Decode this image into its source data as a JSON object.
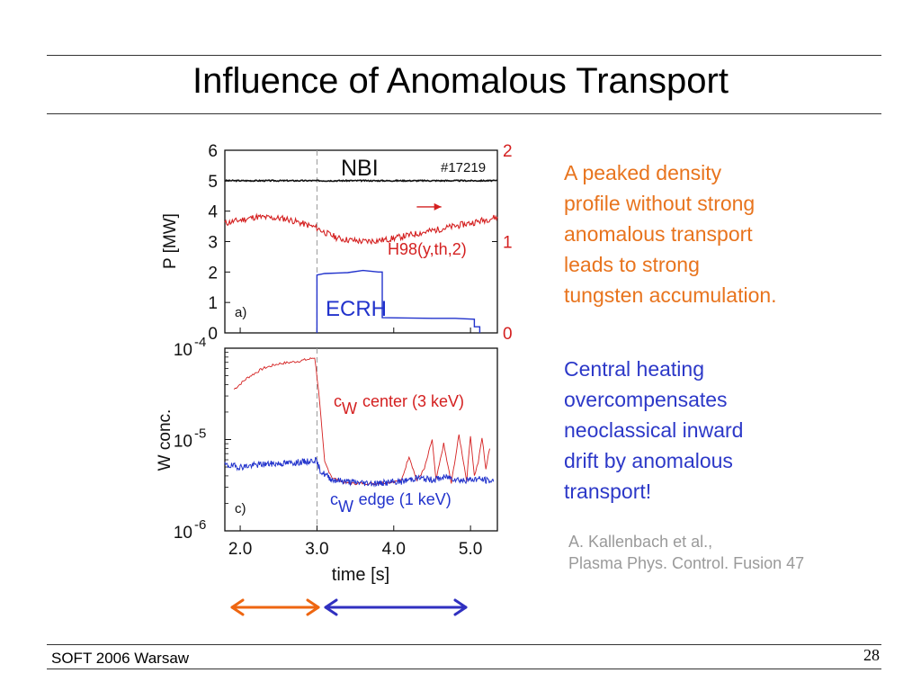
{
  "slide": {
    "title": "Influence of Anomalous Transport",
    "footer": "SOFT 2006 Warsaw",
    "page_number": "28",
    "text_orange": [
      "A peaked density",
      "profile without strong",
      "anomalous transport",
      "leads to strong",
      "tungsten accumulation."
    ],
    "text_blue": [
      "Central heating",
      "overcompensates",
      "neoclassical inward",
      "drift by anomalous",
      "transport!"
    ],
    "citation": [
      "A. Kallenbach et al.,",
      "Plasma Phys. Control. Fusion 47"
    ]
  },
  "colors": {
    "black": "#111111",
    "red": "#d42020",
    "blue": "#2233cc",
    "orange": "#ee6611",
    "arrow_blue": "#3030c0",
    "text_orange": "#e8741e",
    "text_blue": "#2c38c8",
    "grey": "#9a9a9a"
  },
  "chart_data": [
    {
      "type": "line",
      "panel_label": "a)",
      "shot_label": "#17219",
      "ylabel": "P  [MW]",
      "xlim": [
        1.8,
        5.35
      ],
      "ylim": [
        0,
        6
      ],
      "y_ticks": [
        "0",
        "1",
        "2",
        "3",
        "4",
        "5",
        "6"
      ],
      "y2_ticks": [
        "0",
        "1",
        "2"
      ],
      "y2lim": [
        0,
        2
      ],
      "vline_x": 3.0,
      "annotations": [
        "NBI",
        "H98(y,th,2)",
        "ECRH"
      ],
      "series": [
        {
          "name": "NBI",
          "color": "black",
          "x": [
            1.8,
            5.35
          ],
          "y": [
            5.0,
            5.0
          ]
        },
        {
          "name": "H98(y,th,2)",
          "color": "red",
          "axis": "right",
          "x": [
            1.8,
            2.2,
            2.6,
            3.0,
            3.1,
            3.3,
            3.6,
            3.9,
            4.2,
            4.5,
            4.8,
            5.1,
            5.35
          ],
          "y": [
            1.2,
            1.27,
            1.25,
            1.15,
            1.1,
            1.03,
            1.0,
            1.02,
            1.07,
            1.12,
            1.17,
            1.22,
            1.27
          ]
        },
        {
          "name": "ECRH",
          "color": "blue",
          "x": [
            3.0,
            3.0,
            3.1,
            3.4,
            3.6,
            3.8,
            3.85,
            3.85,
            4.5,
            4.8,
            5.05,
            5.05,
            5.12,
            5.12
          ],
          "y": [
            0.0,
            1.9,
            1.95,
            1.98,
            2.05,
            2.0,
            2.0,
            0.5,
            0.48,
            0.48,
            0.45,
            0.2,
            0.2,
            0.0
          ]
        }
      ]
    },
    {
      "type": "line",
      "panel_label": "c)",
      "ylabel": "W conc.",
      "xlabel": "time [s]",
      "xlim": [
        1.8,
        5.35
      ],
      "x_ticks": [
        "2.0",
        "3.0",
        "4.0",
        "5.0"
      ],
      "log_y": true,
      "ylim_exp": [
        -6,
        -4
      ],
      "y_tick_base": "10",
      "y_tick_exps": [
        "-6",
        "-5",
        "-4"
      ],
      "vline_x": 3.0,
      "legend": [
        {
          "name": "W",
          "prefix": "c",
          "label": "center (3 keV)",
          "color": "red"
        },
        {
          "name": "W",
          "prefix": "c",
          "label": "edge (1 keV)",
          "color": "blue"
        }
      ],
      "series": [
        {
          "name": "W",
          "color": "red",
          "x": [
            1.92,
            2.1,
            2.3,
            2.5,
            2.7,
            2.9,
            2.97,
            3.02,
            3.1,
            3.2,
            3.4,
            3.8,
            4.1,
            4.2,
            4.3,
            4.4,
            4.5,
            4.55,
            4.65,
            4.75,
            4.85,
            4.95,
            5.0,
            5.05,
            5.1,
            5.15,
            5.2,
            5.25
          ],
          "y": [
            -4.45,
            -4.32,
            -4.22,
            -4.17,
            -4.15,
            -4.12,
            -4.1,
            -4.45,
            -5.25,
            -5.42,
            -5.48,
            -5.48,
            -5.45,
            -5.18,
            -5.45,
            -5.32,
            -5.0,
            -5.45,
            -5.05,
            -5.48,
            -4.95,
            -5.45,
            -4.95,
            -5.4,
            -5.25,
            -4.98,
            -5.32,
            -5.1
          ]
        },
        {
          "name": "W",
          "color": "blue",
          "x": [
            1.8,
            2.0,
            2.3,
            2.6,
            2.9,
            2.98,
            3.05,
            3.2,
            3.5,
            3.8,
            4.1,
            4.3,
            4.5,
            4.7,
            4.9,
            5.1,
            5.3
          ],
          "y": [
            -5.28,
            -5.3,
            -5.27,
            -5.26,
            -5.24,
            -5.22,
            -5.35,
            -5.44,
            -5.47,
            -5.48,
            -5.46,
            -5.42,
            -5.44,
            -5.41,
            -5.45,
            -5.43,
            -5.46
          ]
        }
      ]
    }
  ]
}
